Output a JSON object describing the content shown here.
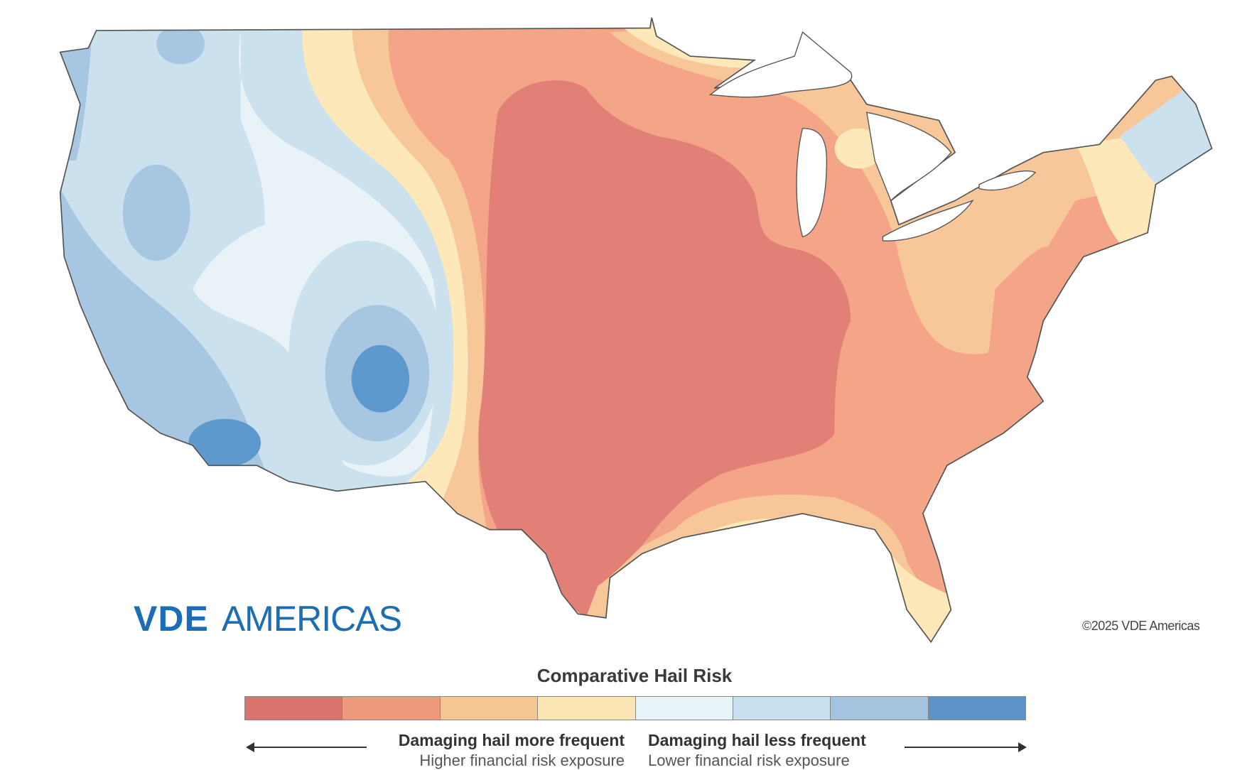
{
  "legend": {
    "title": "Comparative Hail Risk",
    "colors": [
      "#d9756d",
      "#ed9a7c",
      "#f6c594",
      "#fbe6b4",
      "#e9f4f8",
      "#c9e0ee",
      "#a4c3de",
      "#5b92c8"
    ],
    "left_label": "Damaging hail more frequent",
    "left_sublabel": "Higher financial risk exposure",
    "right_label": "Damaging hail less frequent",
    "right_sublabel": "Lower financial risk exposure"
  },
  "logo": {
    "bold": "VDE",
    "light": "AMERICAS",
    "color": "#1b6db5"
  },
  "copyright": "©2025 VDE Americas",
  "map_colors": {
    "red": "#e27f77",
    "salmon": "#f4a487",
    "light_orange": "#f8c799",
    "yellow": "#fce8b8",
    "very_light_blue": "#e9f3f7",
    "light_blue": "#cbe1ee",
    "mid_blue": "#a7c6e1",
    "dark_blue": "#5e99cd"
  }
}
